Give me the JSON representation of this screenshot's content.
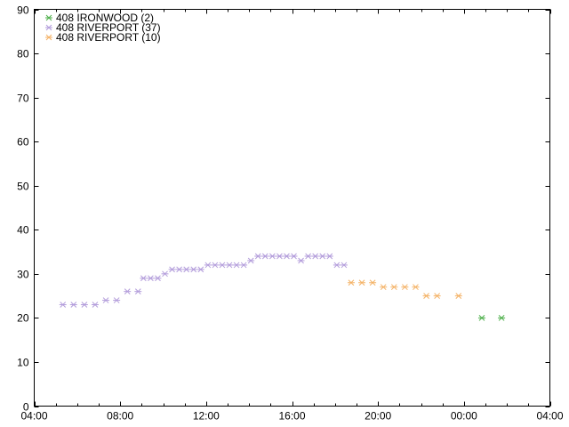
{
  "chart_data": {
    "type": "scatter",
    "title": "",
    "xlabel": "",
    "ylabel": "",
    "xlim": [
      "04:00",
      "04:00 (+1 day)"
    ],
    "ylim": [
      0,
      90
    ],
    "x_ticks": [
      "04:00",
      "08:00",
      "12:00",
      "16:00",
      "20:00",
      "00:00",
      "04:00"
    ],
    "y_ticks": [
      "0",
      "10",
      "20",
      "30",
      "40",
      "50",
      "60",
      "70",
      "80",
      "90"
    ],
    "grid": false,
    "legend_position": "top-left",
    "marker": "asterisk",
    "series": [
      {
        "name": "408 IRONWOOD (2)",
        "color": "#4daf4a",
        "points": [
          {
            "x": "00:50",
            "y": 20
          },
          {
            "x": "01:45",
            "y": 20
          }
        ]
      },
      {
        "name": "408 RIVERPORT (37)",
        "color": "#b39ddb",
        "points": [
          {
            "x": "05:20",
            "y": 23
          },
          {
            "x": "05:50",
            "y": 23
          },
          {
            "x": "06:20",
            "y": 23
          },
          {
            "x": "06:50",
            "y": 23
          },
          {
            "x": "07:20",
            "y": 24
          },
          {
            "x": "07:50",
            "y": 24
          },
          {
            "x": "08:20",
            "y": 26
          },
          {
            "x": "08:50",
            "y": 26
          },
          {
            "x": "09:05",
            "y": 29
          },
          {
            "x": "09:25",
            "y": 29
          },
          {
            "x": "09:45",
            "y": 29
          },
          {
            "x": "10:05",
            "y": 30
          },
          {
            "x": "10:25",
            "y": 31
          },
          {
            "x": "10:45",
            "y": 31
          },
          {
            "x": "11:05",
            "y": 31
          },
          {
            "x": "11:25",
            "y": 31
          },
          {
            "x": "11:45",
            "y": 31
          },
          {
            "x": "12:05",
            "y": 32
          },
          {
            "x": "12:25",
            "y": 32
          },
          {
            "x": "12:45",
            "y": 32
          },
          {
            "x": "13:05",
            "y": 32
          },
          {
            "x": "13:25",
            "y": 32
          },
          {
            "x": "13:45",
            "y": 32
          },
          {
            "x": "14:05",
            "y": 33
          },
          {
            "x": "14:25",
            "y": 34
          },
          {
            "x": "14:45",
            "y": 34
          },
          {
            "x": "15:05",
            "y": 34
          },
          {
            "x": "15:25",
            "y": 34
          },
          {
            "x": "15:45",
            "y": 34
          },
          {
            "x": "16:05",
            "y": 34
          },
          {
            "x": "16:25",
            "y": 33
          },
          {
            "x": "16:45",
            "y": 34
          },
          {
            "x": "17:05",
            "y": 34
          },
          {
            "x": "17:25",
            "y": 34
          },
          {
            "x": "17:45",
            "y": 34
          },
          {
            "x": "18:05",
            "y": 32
          },
          {
            "x": "18:25",
            "y": 32
          }
        ]
      },
      {
        "name": "408 RIVERPORT (10)",
        "color": "#f4b266",
        "points": [
          {
            "x": "18:45",
            "y": 28
          },
          {
            "x": "19:15",
            "y": 28
          },
          {
            "x": "19:45",
            "y": 28
          },
          {
            "x": "20:15",
            "y": 27
          },
          {
            "x": "20:45",
            "y": 27
          },
          {
            "x": "21:15",
            "y": 27
          },
          {
            "x": "21:45",
            "y": 27
          },
          {
            "x": "22:15",
            "y": 25
          },
          {
            "x": "22:45",
            "y": 25
          },
          {
            "x": "23:45",
            "y": 25
          }
        ]
      }
    ]
  }
}
